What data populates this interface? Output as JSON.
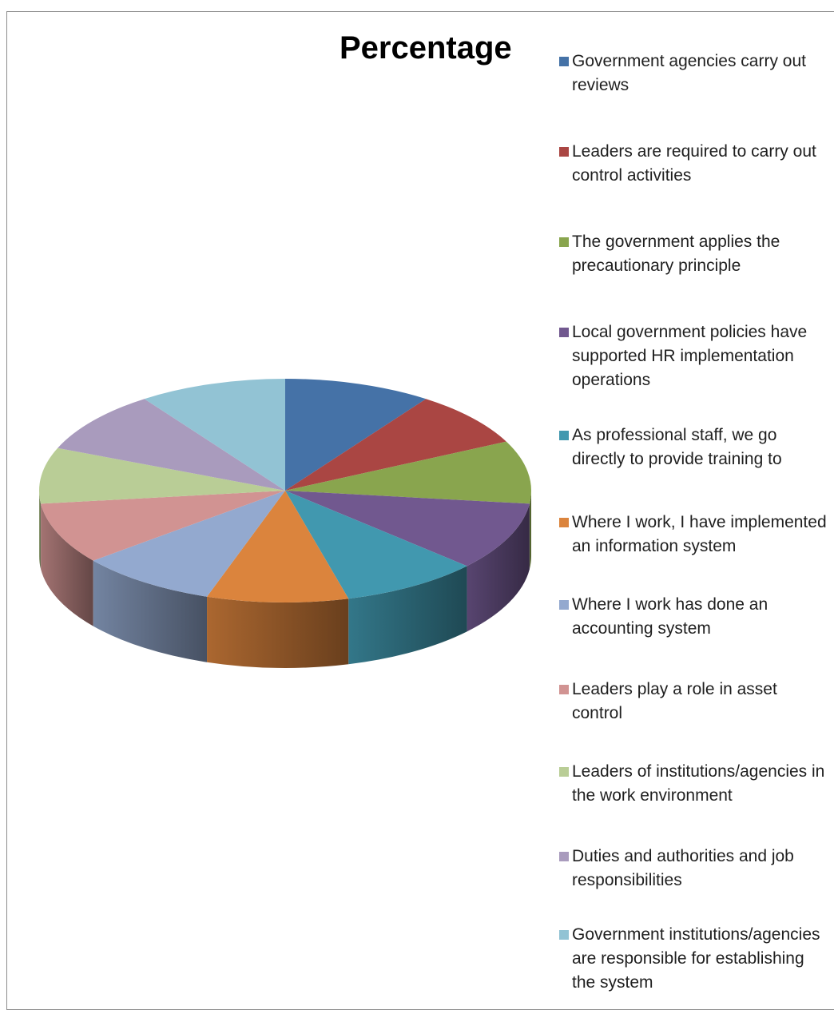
{
  "chart_data": {
    "type": "pie",
    "title": "Percentage",
    "categories": [
      "Government agencies carry out reviews",
      "Leaders are required to carry out control activities",
      "The government applies the precautionary principle",
      "Local government policies have supported HR implementation operations",
      "As professional staff, we go directly to provide training to",
      "Where I work, I have implemented an information system",
      "Where I work has done an accounting system",
      "Leaders play a role in asset control",
      "Leaders of institutions/agencies in the work environment",
      "Duties and authorities and job responsibilities",
      "Government institutions/agencies are responsible for establishing the system"
    ],
    "values": [
      9.6,
      8.0,
      9.0,
      9.8,
      9.0,
      9.2,
      9.0,
      8.8,
      8.0,
      9.0,
      9.6
    ],
    "colors": [
      "#4572A7",
      "#AA4643",
      "#89A54E",
      "#71588F",
      "#4198AF",
      "#DB843D",
      "#93A9CF",
      "#D19392",
      "#B9CD96",
      "#A99BBD",
      "#92C3D4"
    ],
    "legend_position": "right",
    "chart_style": "3d"
  }
}
